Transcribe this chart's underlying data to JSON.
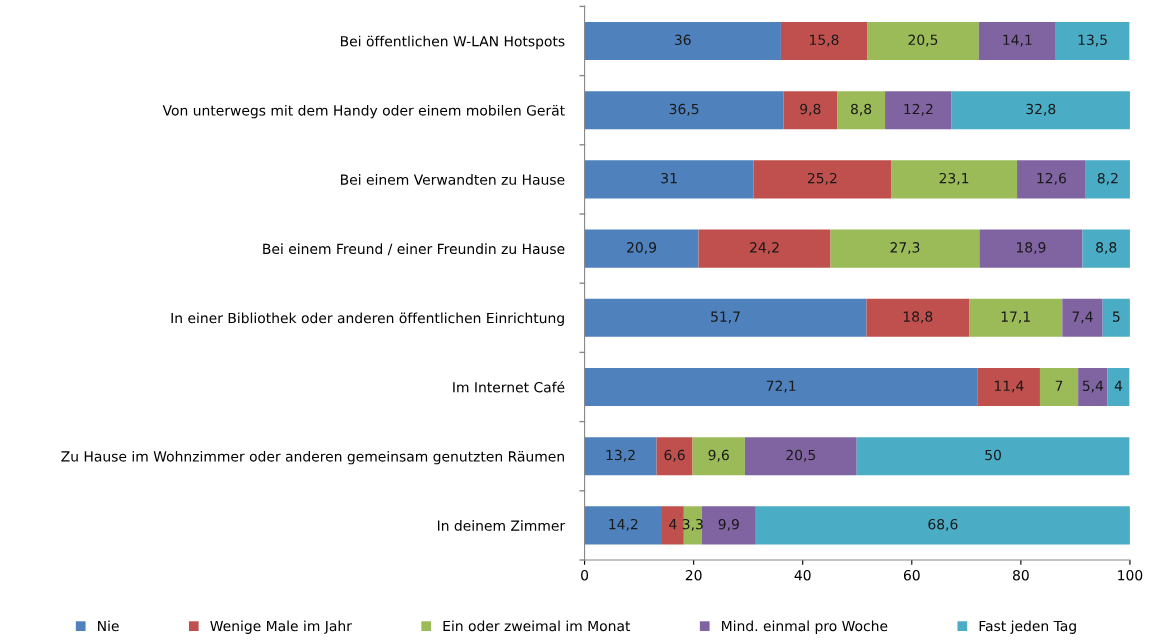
{
  "chart_data": {
    "type": "bar",
    "orientation": "horizontal",
    "stacked": true,
    "categories": [
      "Bei öffentlichen W-LAN Hotspots",
      "Von unterwegs mit dem Handy oder einem mobilen Gerät",
      "Bei einem Verwandten zu Hause",
      "Bei einem Freund / einer Freundin zu Hause",
      "In einer Bibliothek oder anderen öffentlichen Einrichtung",
      "Im Internet Café",
      "Zu Hause im Wohnzimmer oder anderen gemeinsam genutzten Räumen",
      "In deinem Zimmer"
    ],
    "series": [
      {
        "name": "Nie",
        "color": "#4f81bd",
        "values": [
          36,
          36.5,
          31,
          20.9,
          51.7,
          72.1,
          13.2,
          14.2
        ],
        "value_labels": [
          "36",
          "36,5",
          "31",
          "20,9",
          "51,7",
          "72,1",
          "13,2",
          "14,2"
        ]
      },
      {
        "name": "Wenige Male im Jahr",
        "color": "#c0504d",
        "values": [
          15.8,
          9.8,
          25.2,
          24.2,
          18.8,
          11.4,
          6.6,
          4
        ],
        "value_labels": [
          "15,8",
          "9,8",
          "25,2",
          "24,2",
          "18,8",
          "11,4",
          "6,6",
          "4"
        ]
      },
      {
        "name": "Ein oder zweimal im Monat",
        "color": "#9bbb59",
        "values": [
          20.5,
          8.8,
          23.1,
          27.3,
          17.1,
          7,
          9.6,
          3.3
        ],
        "value_labels": [
          "20,5",
          "8,8",
          "23,1",
          "27,3",
          "17,1",
          "7",
          "9,6",
          "3,3"
        ]
      },
      {
        "name": "Mind. einmal pro Woche",
        "color": "#8064a2",
        "values": [
          14.1,
          12.2,
          12.6,
          18.9,
          7.4,
          5.4,
          20.5,
          9.9
        ],
        "value_labels": [
          "14,1",
          "12,2",
          "12,6",
          "18,9",
          "7,4",
          "5,4",
          "20,5",
          "9,9"
        ]
      },
      {
        "name": "Fast jeden Tag",
        "color": "#4bacc6",
        "values": [
          13.5,
          32.8,
          8.2,
          8.8,
          5,
          4,
          50,
          68.6
        ],
        "value_labels": [
          "13,5",
          "32,8",
          "8,2",
          "8,8",
          "5",
          "4",
          "50",
          "68,6"
        ]
      }
    ],
    "xlim": [
      0,
      100
    ],
    "xticks": [
      0,
      20,
      40,
      60,
      80,
      100
    ],
    "grid": false,
    "legend": "bottom"
  }
}
